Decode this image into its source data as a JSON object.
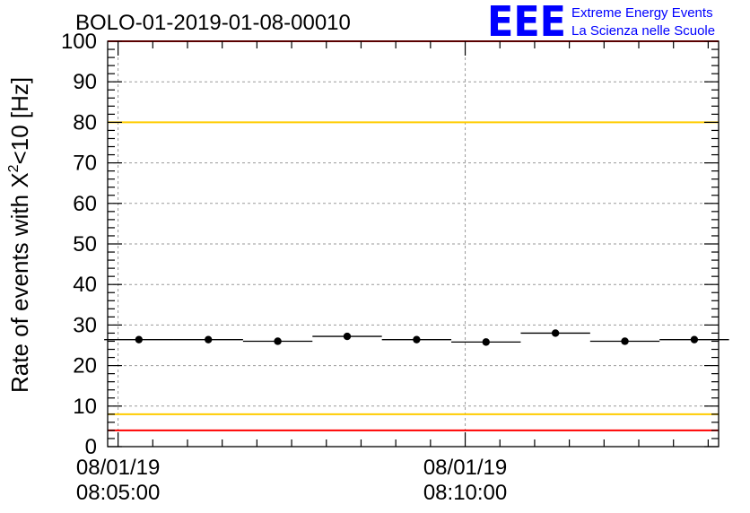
{
  "chart_data": {
    "type": "scatter",
    "title": "BOLO-01-2019-01-08-00010",
    "ylabel_prefix": "Rate of events with X",
    "ylabel_superscript": "2",
    "ylabel_suffix": "<10 [Hz]",
    "ylim": [
      0,
      100
    ],
    "yticks": [
      0,
      10,
      20,
      30,
      40,
      50,
      60,
      70,
      80,
      90,
      100
    ],
    "ytick_labels": [
      "0",
      "10",
      "20",
      "30",
      "40",
      "50",
      "60",
      "70",
      "80",
      "90",
      "100"
    ],
    "xlim_minutes_after_0805": [
      -0.15,
      8.65
    ],
    "xticks": [
      {
        "minute": 0,
        "date": "08/01/19",
        "time": "08:05:00"
      },
      {
        "minute": 5,
        "date": "08/01/19",
        "time": "08:10:00"
      }
    ],
    "grid": true,
    "points": [
      {
        "center": 0.3,
        "half_width": 0.5,
        "y": 26.4
      },
      {
        "center": 1.3,
        "half_width": 0.5,
        "y": 26.4
      },
      {
        "center": 2.3,
        "half_width": 0.5,
        "y": 26.0
      },
      {
        "center": 3.3,
        "half_width": 0.5,
        "y": 27.2
      },
      {
        "center": 4.3,
        "half_width": 0.5,
        "y": 26.4
      },
      {
        "center": 5.3,
        "half_width": 0.5,
        "y": 25.8
      },
      {
        "center": 6.3,
        "half_width": 0.5,
        "y": 28.0
      },
      {
        "center": 7.3,
        "half_width": 0.5,
        "y": 26.0
      },
      {
        "center": 8.3,
        "half_width": 0.5,
        "y": 26.4
      }
    ],
    "reference_lines": [
      {
        "y": 100,
        "color": "#ff0000"
      },
      {
        "y": 80,
        "color": "#ffcc00"
      },
      {
        "y": 8,
        "color": "#ffcc00"
      },
      {
        "y": 4,
        "color": "#ff0000"
      }
    ]
  },
  "logo": {
    "text": "EEE",
    "line1": "Extreme Energy Events",
    "line2": "La Scienza nelle Scuole",
    "color": "#0000ff"
  }
}
